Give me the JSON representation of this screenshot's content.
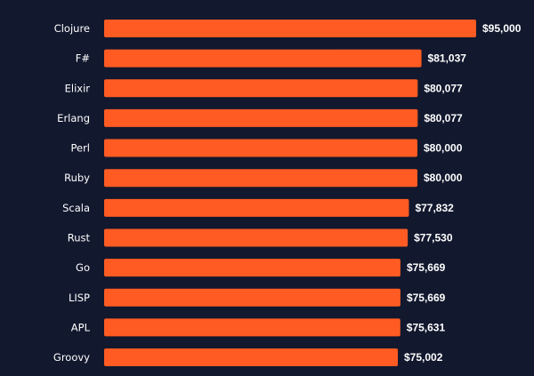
{
  "chart_data": {
    "type": "bar",
    "orientation": "horizontal",
    "categories": [
      "Clojure",
      "F#",
      "Elixir",
      "Erlang",
      "Perl",
      "Ruby",
      "Scala",
      "Rust",
      "Go",
      "LISP",
      "APL",
      "Groovy"
    ],
    "values": [
      95000,
      81037,
      80077,
      80077,
      80000,
      80000,
      77832,
      77530,
      75669,
      75669,
      75631,
      75002
    ],
    "value_labels": [
      "$95,000",
      "$81,037",
      "$80,077",
      "$80,077",
      "$80,000",
      "$80,000",
      "$77,832",
      "$77,530",
      "$75,669",
      "$75,669",
      "$75,631",
      "$75,002"
    ],
    "title": "",
    "xlabel": "",
    "ylabel": "",
    "xlim": [
      0,
      95000
    ],
    "grid": false,
    "legend": "none",
    "colors": {
      "background": "#12182e",
      "bar": "#ff5b22",
      "label": "#ffffff"
    }
  }
}
